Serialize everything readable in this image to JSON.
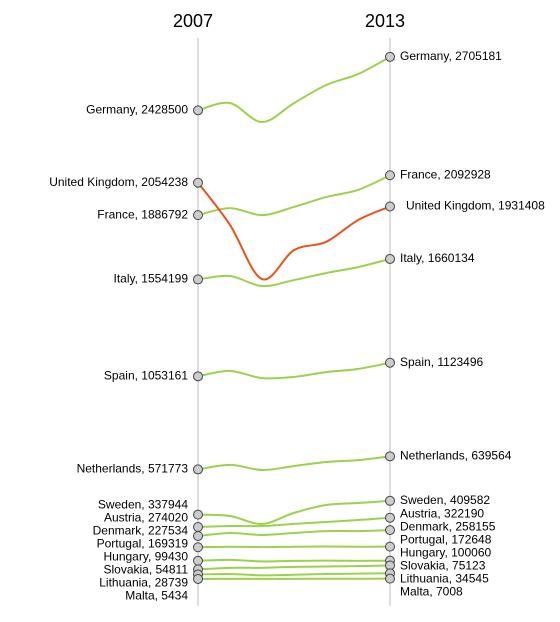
{
  "chart_data": {
    "type": "slope",
    "x": [
      2007,
      2008,
      2009,
      2010,
      2011,
      2012,
      2013
    ],
    "xlim": [
      2007,
      2013
    ],
    "xticks": [
      2007,
      2013
    ],
    "ylim": [
      0,
      2844000
    ],
    "series": [
      {
        "color": "#9bd14b",
        "values": [
          2428500,
          2466000,
          2368000,
          2466000,
          2559000,
          2616000,
          2705181
        ],
        "value_labels": [
          "Germany, 2428500",
          null,
          null,
          null,
          null,
          null,
          "Germany, 2705181"
        ]
      },
      {
        "color": "#e8541a",
        "values": [
          2054238,
          1836000,
          1556000,
          1706000,
          1748000,
          1861000,
          1931408
        ],
        "value_labels": [
          "United Kingdom, 2054238",
          null,
          null,
          null,
          null,
          null,
          "United Kingdom, 1931408"
        ]
      },
      {
        "color": "#9bd14b",
        "values": [
          1886792,
          1923000,
          1887000,
          1929000,
          1980000,
          2017000,
          2092928
        ],
        "value_labels": [
          "France, 1886792",
          null,
          null,
          null,
          null,
          null,
          "France, 2092928"
        ]
      },
      {
        "color": "#9bd14b",
        "values": [
          1554199,
          1572000,
          1520000,
          1551000,
          1587000,
          1618000,
          1660134
        ],
        "value_labels": [
          "Italy, 1554199",
          null,
          null,
          null,
          null,
          null,
          "Italy, 1660134"
        ]
      },
      {
        "color": "#9bd14b",
        "values": [
          1053161,
          1081000,
          1044000,
          1050000,
          1075000,
          1091000,
          1123496
        ],
        "value_labels": [
          "Spain, 1053161",
          null,
          null,
          null,
          null,
          null,
          "Spain, 1123496"
        ]
      },
      {
        "color": "#9bd14b",
        "values": [
          571773,
          595000,
          569000,
          589000,
          610000,
          620000,
          639564
        ],
        "value_labels": [
          "Netherlands, 571773",
          null,
          null,
          null,
          null,
          null,
          "Netherlands, 639564"
        ]
      },
      {
        "color": "#9bd14b",
        "values": [
          337944,
          331000,
          290000,
          347000,
          388000,
          398000,
          409582
        ],
        "value_labels": [
          "Sweden, 337944",
          null,
          null,
          null,
          null,
          null,
          "Sweden, 409582"
        ]
      },
      {
        "color": "#9bd14b",
        "values": [
          274020,
          279000,
          279000,
          290000,
          300000,
          310000,
          322190
        ],
        "value_labels": [
          "Austria, 274020",
          null,
          null,
          null,
          null,
          null,
          "Austria, 322190"
        ]
      },
      {
        "color": "#9bd14b",
        "values": [
          227534,
          243000,
          233000,
          243000,
          253000,
          253000,
          258155
        ],
        "value_labels": [
          "Denmark, 227534",
          null,
          null,
          null,
          null,
          null,
          "Denmark, 258155"
        ]
      },
      {
        "color": "#9bd14b",
        "values": [
          169319,
          172000,
          170000,
          172000,
          173000,
          172000,
          172648
        ],
        "value_labels": [
          "Portugal, 169319",
          null,
          null,
          null,
          null,
          null,
          "Portugal, 172648"
        ]
      },
      {
        "color": "#9bd14b",
        "values": [
          99430,
          104000,
          96000,
          99000,
          100000,
          99000,
          100060
        ],
        "value_labels": [
          "Hungary, 99430",
          null,
          null,
          null,
          null,
          null,
          "Hungary, 100060"
        ]
      },
      {
        "color": "#9bd14b",
        "values": [
          54811,
          63000,
          63000,
          68000,
          70000,
          72000,
          75123
        ],
        "value_labels": [
          "Slovakia, 54811",
          null,
          null,
          null,
          null,
          null,
          "Slovakia, 75123"
        ]
      },
      {
        "color": "#9bd14b",
        "values": [
          28739,
          31000,
          24000,
          27000,
          31000,
          33000,
          34545
        ],
        "value_labels": [
          "Lithuania, 28739",
          null,
          null,
          null,
          null,
          null,
          "Lithuania, 34545"
        ]
      },
      {
        "color": "#9bd14b",
        "values": [
          5434,
          5600,
          5700,
          6000,
          6300,
          6600,
          7008
        ],
        "value_labels": [
          "Malta, 5434",
          null,
          null,
          null,
          null,
          null,
          "Malta, 7008"
        ]
      }
    ]
  }
}
